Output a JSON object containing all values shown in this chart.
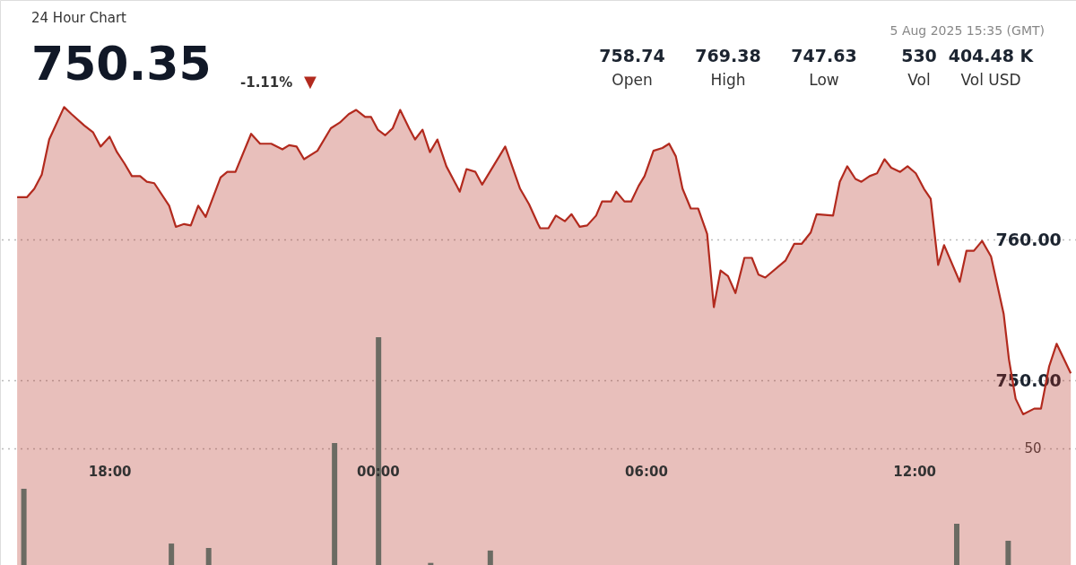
{
  "chart_data": {
    "type": "area",
    "subtitle": "24 Hour Chart",
    "annotations": [
      "750.35",
      "-1.11%",
      "▼",
      "5 Aug 2025 15:35 (GMT)",
      "758.74",
      "Open",
      "769.38",
      "High",
      "747.63",
      "Low",
      "530",
      "Vol",
      "404.48 K",
      "Vol USD"
    ],
    "xlim": [
      "2025-08-04T15:39",
      "2025-08-05T15:31"
    ],
    "xticks": [
      {
        "value": "2025-08-04T18:00",
        "label": "18:00"
      },
      {
        "value": "2025-08-05T00:00",
        "label": "00:00"
      },
      {
        "value": "2025-08-05T06:00",
        "label": "06:00"
      },
      {
        "value": "2025-08-05T12:00",
        "label": "12:00"
      }
    ],
    "ylim": [
      736.9,
      777.0
    ],
    "yticks": [
      {
        "value": 750,
        "label": "750.00"
      },
      {
        "value": 760,
        "label": "760.00"
      }
    ],
    "y2lim": [
      0,
      242.3
    ],
    "y2ticks": [
      50
    ],
    "grid": "y",
    "line_style": "solid",
    "series": [
      {
        "color": "#b22a1e",
        "x": [
          "2025-08-04T15:56",
          "2025-08-04T16:09",
          "2025-08-04T16:19",
          "2025-08-04T16:29",
          "2025-08-04T16:39",
          "2025-08-04T16:59",
          "2025-08-04T17:09",
          "2025-08-04T17:26",
          "2025-08-04T17:38",
          "2025-08-04T17:48",
          "2025-08-04T18:00",
          "2025-08-04T18:10",
          "2025-08-04T18:20",
          "2025-08-04T18:30",
          "2025-08-04T18:41",
          "2025-08-04T18:50",
          "2025-08-04T19:00",
          "2025-08-04T19:20",
          "2025-08-04T19:29",
          "2025-08-04T19:40",
          "2025-08-04T19:49",
          "2025-08-04T19:59",
          "2025-08-04T20:09",
          "2025-08-04T20:29",
          "2025-08-04T20:38",
          "2025-08-04T20:49",
          "2025-08-04T21:10",
          "2025-08-04T21:22",
          "2025-08-04T21:37",
          "2025-08-04T21:52",
          "2025-08-04T22:01",
          "2025-08-04T22:11",
          "2025-08-04T22:21",
          "2025-08-04T22:39",
          "2025-08-04T22:57",
          "2025-08-04T23:09",
          "2025-08-04T23:21",
          "2025-08-04T23:31",
          "2025-08-04T23:43",
          "2025-08-04T23:51",
          "2025-08-05T00:00",
          "2025-08-05T00:10",
          "2025-08-05T00:20",
          "2025-08-05T00:30",
          "2025-08-05T00:42",
          "2025-08-05T00:50",
          "2025-08-05T01:00",
          "2025-08-05T01:10",
          "2025-08-05T01:20",
          "2025-08-05T01:32",
          "2025-08-05T01:50",
          "2025-08-05T01:59",
          "2025-08-05T02:11",
          "2025-08-05T02:20",
          "2025-08-05T02:51",
          "2025-08-05T03:11",
          "2025-08-05T03:23",
          "2025-08-05T03:35",
          "2025-08-05T03:38",
          "2025-08-05T03:49",
          "2025-08-05T03:59",
          "2025-08-05T04:11",
          "2025-08-05T04:20",
          "2025-08-05T04:31",
          "2025-08-05T04:41",
          "2025-08-05T04:53",
          "2025-08-05T05:01",
          "2025-08-05T05:13",
          "2025-08-05T05:20",
          "2025-08-05T05:31",
          "2025-08-05T05:40",
          "2025-08-05T05:50",
          "2025-08-05T05:58",
          "2025-08-05T06:10",
          "2025-08-05T06:22",
          "2025-08-05T06:31",
          "2025-08-05T06:40",
          "2025-08-05T06:49",
          "2025-08-05T07:00",
          "2025-08-05T07:10",
          "2025-08-05T07:22",
          "2025-08-05T07:31",
          "2025-08-05T07:40",
          "2025-08-05T07:50",
          "2025-08-05T08:00",
          "2025-08-05T08:12",
          "2025-08-05T08:22",
          "2025-08-05T08:31",
          "2025-08-05T08:40",
          "2025-08-05T09:07",
          "2025-08-05T09:19",
          "2025-08-05T09:29",
          "2025-08-05T09:41",
          "2025-08-05T09:49",
          "2025-08-05T10:11",
          "2025-08-05T10:20",
          "2025-08-05T10:30",
          "2025-08-05T10:41",
          "2025-08-05T10:49",
          "2025-08-05T11:00",
          "2025-08-05T11:10",
          "2025-08-05T11:20",
          "2025-08-05T11:29",
          "2025-08-05T11:41",
          "2025-08-05T11:51",
          "2025-08-05T12:02",
          "2025-08-05T12:13",
          "2025-08-05T12:22",
          "2025-08-05T12:32",
          "2025-08-05T12:40",
          "2025-08-05T13:01",
          "2025-08-05T13:10",
          "2025-08-05T13:20",
          "2025-08-05T13:31",
          "2025-08-05T13:43",
          "2025-08-05T14:00",
          "2025-08-05T14:07",
          "2025-08-05T14:16",
          "2025-08-05T14:26",
          "2025-08-05T14:41",
          "2025-08-05T14:50",
          "2025-08-05T15:01",
          "2025-08-05T15:11",
          "2025-08-05T15:30"
        ],
        "values": [
          763.0,
          763.0,
          763.6,
          764.6,
          767.1,
          769.4,
          768.9,
          768.1,
          767.6,
          766.6,
          767.3,
          766.2,
          765.4,
          764.5,
          764.5,
          764.1,
          764.0,
          762.4,
          760.9,
          761.1,
          761.0,
          762.4,
          761.6,
          764.4,
          764.8,
          764.8,
          767.5,
          766.8,
          766.8,
          766.4,
          766.7,
          766.6,
          765.7,
          766.3,
          767.9,
          768.3,
          768.9,
          769.2,
          768.7,
          768.7,
          767.8,
          767.4,
          767.9,
          769.2,
          767.9,
          767.1,
          767.8,
          766.2,
          767.1,
          765.2,
          763.4,
          765.0,
          764.8,
          763.9,
          766.6,
          763.6,
          762.5,
          761.1,
          760.8,
          760.8,
          761.7,
          761.3,
          761.8,
          760.9,
          761.0,
          761.7,
          762.7,
          762.7,
          763.4,
          762.7,
          762.7,
          763.8,
          764.5,
          766.3,
          766.5,
          766.8,
          765.9,
          763.6,
          762.2,
          762.2,
          760.4,
          755.2,
          757.8,
          757.4,
          756.2,
          758.7,
          758.7,
          757.5,
          757.3,
          758.5,
          759.7,
          759.7,
          760.5,
          761.8,
          761.7,
          764.1,
          765.2,
          764.3,
          764.1,
          764.5,
          764.7,
          765.7,
          765.1,
          764.8,
          765.2,
          764.7,
          763.6,
          762.9,
          758.2,
          759.6,
          757.0,
          759.2,
          759.2,
          759.9,
          758.8,
          754.7,
          751.5,
          748.7,
          747.6,
          748.0,
          748.0,
          751.0,
          752.6,
          750.5
        ]
      },
      {
        "type": "bar",
        "axis": "y2",
        "color": "#6b6b63",
        "x": [
          "2025-08-04T16:05",
          "2025-08-04T19:23",
          "2025-08-04T20:13",
          "2025-08-04T23:02",
          "2025-08-05T00:01",
          "2025-08-05T01:11",
          "2025-08-05T02:31",
          "2025-08-05T12:57",
          "2025-08-05T14:06"
        ],
        "values": [
          32.7,
          9.2,
          7.3,
          52.3,
          97.7,
          0.9,
          6.2,
          17.7,
          10.4
        ]
      }
    ]
  }
}
